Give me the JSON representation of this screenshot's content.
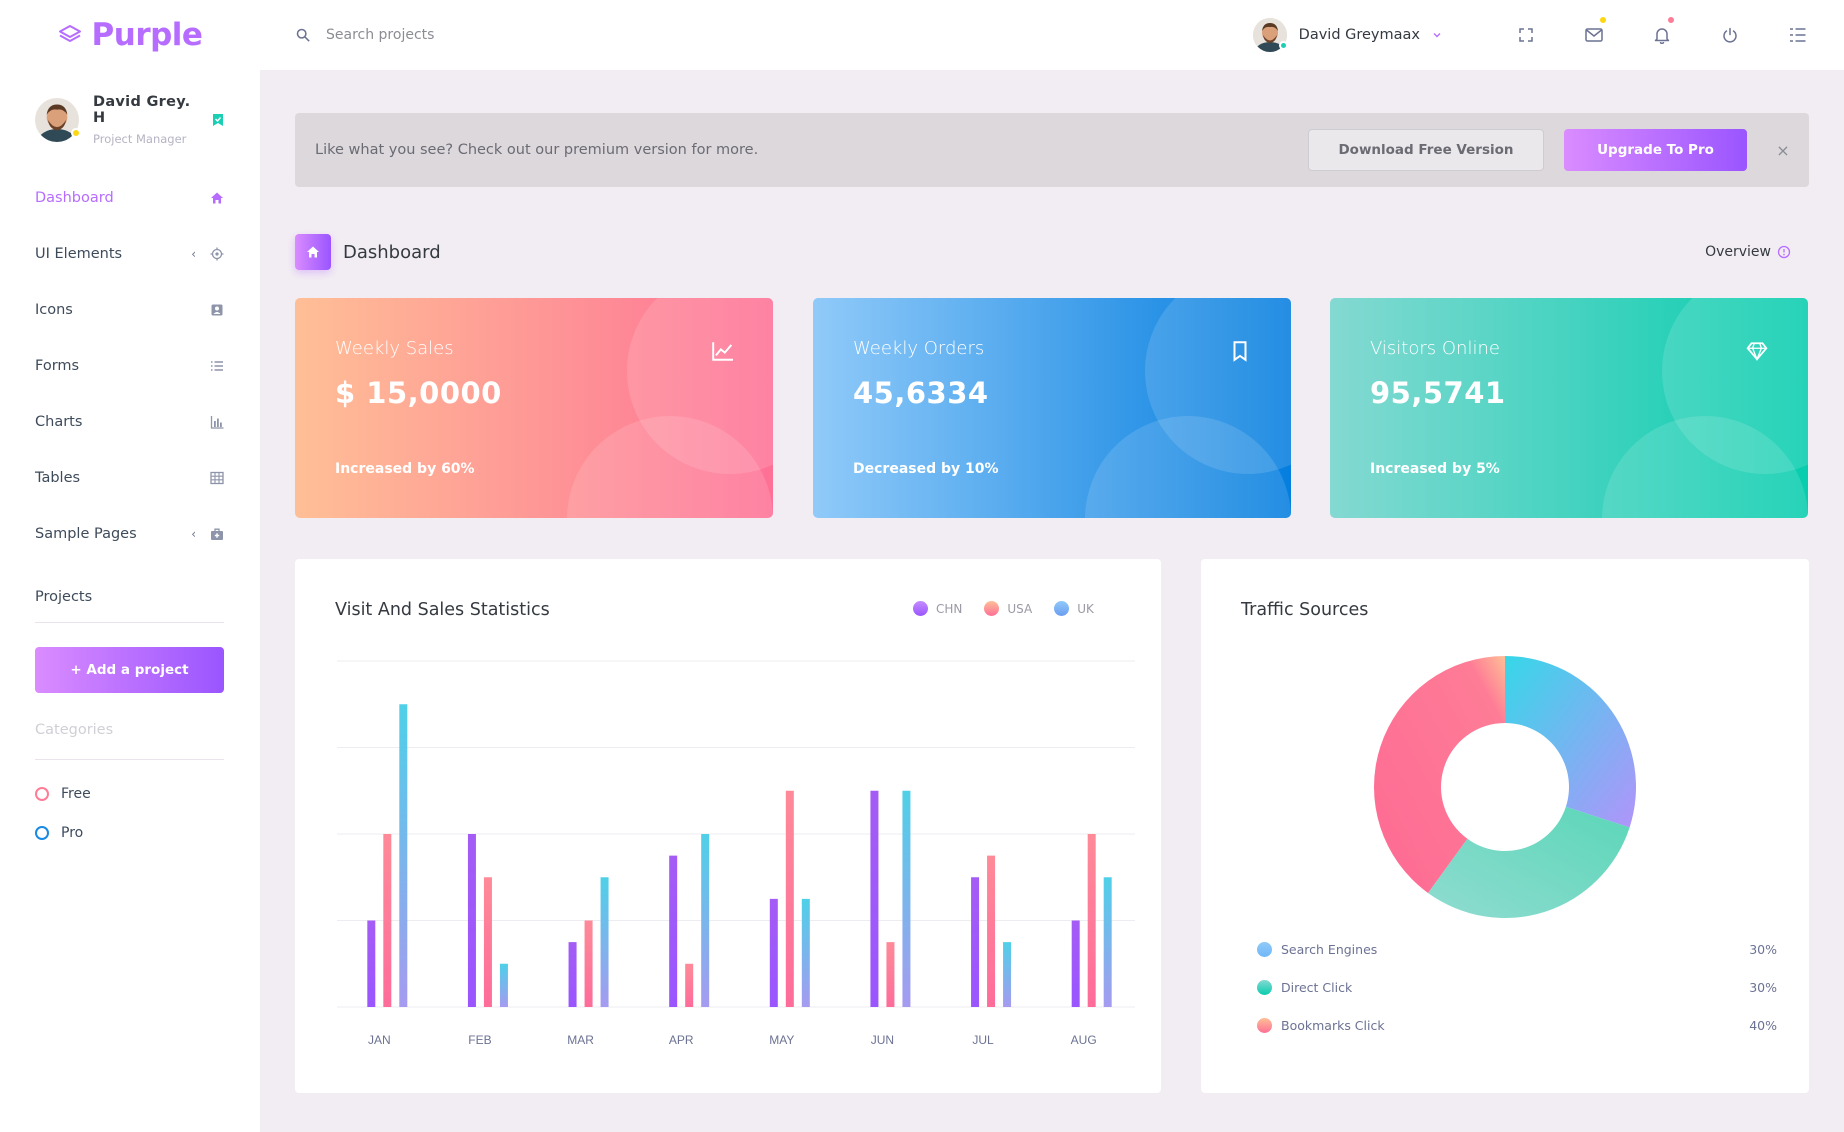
{
  "brand": {
    "name": "Purple"
  },
  "search": {
    "placeholder": "Search projects"
  },
  "topbar": {
    "user_name": "David Greymaax",
    "icons": [
      "fullscreen-icon",
      "mail-icon",
      "bell-icon",
      "power-icon",
      "menu-icon"
    ],
    "mail_dot_color": "#fed713",
    "bell_dot_color": "#fe7c96"
  },
  "sidebar": {
    "profile": {
      "name": "David Grey. H",
      "role": "Project Manager"
    },
    "items": [
      {
        "label": "Dashboard",
        "icon": "home-icon",
        "active": true,
        "expandable": false
      },
      {
        "label": "UI Elements",
        "icon": "crosshairs-icon",
        "active": false,
        "expandable": true
      },
      {
        "label": "Icons",
        "icon": "contacts-icon",
        "active": false,
        "expandable": false
      },
      {
        "label": "Forms",
        "icon": "list-icon",
        "active": false,
        "expandable": false
      },
      {
        "label": "Charts",
        "icon": "chart-bar-icon",
        "active": false,
        "expandable": false
      },
      {
        "label": "Tables",
        "icon": "table-icon",
        "active": false,
        "expandable": false
      },
      {
        "label": "Sample Pages",
        "icon": "medical-bag-icon",
        "active": false,
        "expandable": true
      }
    ],
    "projects_label": "Projects",
    "add_project_label": "+ Add a project",
    "categories_label": "Categories",
    "categories": [
      {
        "label": "Free",
        "color": "#fe7c96"
      },
      {
        "label": "Pro",
        "color": "#198ae3"
      }
    ]
  },
  "banner": {
    "text": "Like what you see? Check out our premium version for more.",
    "download_label": "Download Free Version",
    "upgrade_label": "Upgrade To Pro",
    "close_label": "×"
  },
  "page_header": {
    "title": "Dashboard",
    "overview_label": "Overview"
  },
  "stats": [
    {
      "title": "Weekly Sales",
      "value": "$ 15,0000",
      "note": "Increased by 60%",
      "icon": "chart-line-icon",
      "gradient": [
        "#ffbf96",
        "#fe7096"
      ]
    },
    {
      "title": "Weekly Orders",
      "value": "45,6334",
      "note": "Decreased by 10%",
      "icon": "bookmark-icon",
      "gradient": [
        "#90caf9",
        "#047edf"
      ]
    },
    {
      "title": "Visitors Online",
      "value": "95,5741",
      "note": "Increased by 5%",
      "icon": "diamond-icon",
      "gradient": [
        "#84d9d2",
        "#07cdae"
      ]
    }
  ],
  "visit_sales": {
    "title": "Visit And Sales Statistics",
    "chart_data": {
      "type": "bar",
      "title": "Visit And Sales Statistics",
      "categories": [
        "JAN",
        "FEB",
        "MAR",
        "APR",
        "MAY",
        "JUN",
        "JUL",
        "AUG"
      ],
      "series": [
        {
          "name": "CHN",
          "color": "#9a55ff",
          "values": [
            20,
            40,
            15,
            35,
            25,
            50,
            30,
            20
          ]
        },
        {
          "name": "USA",
          "color": "#fe7096",
          "values": [
            40,
            30,
            20,
            10,
            50,
            15,
            35,
            40
          ]
        },
        {
          "name": "UK",
          "color": "#6c9cf0",
          "values": [
            70,
            10,
            30,
            40,
            25,
            50,
            15,
            30
          ]
        }
      ],
      "ylim": [
        0,
        80
      ],
      "grid": true,
      "legend": "top-right"
    }
  },
  "traffic": {
    "title": "Traffic Sources",
    "chart_data": {
      "type": "pie",
      "title": "Traffic Sources",
      "labels": [
        "Search Engines",
        "Direct Click",
        "Bookmarks Click"
      ],
      "values": [
        30,
        30,
        40
      ],
      "display": [
        "30%",
        "30%",
        "40%"
      ],
      "colors": [
        "#6fb7f7",
        "#3fcfb6",
        "#fe7096"
      ],
      "donut": true,
      "legend": "bottom"
    }
  }
}
